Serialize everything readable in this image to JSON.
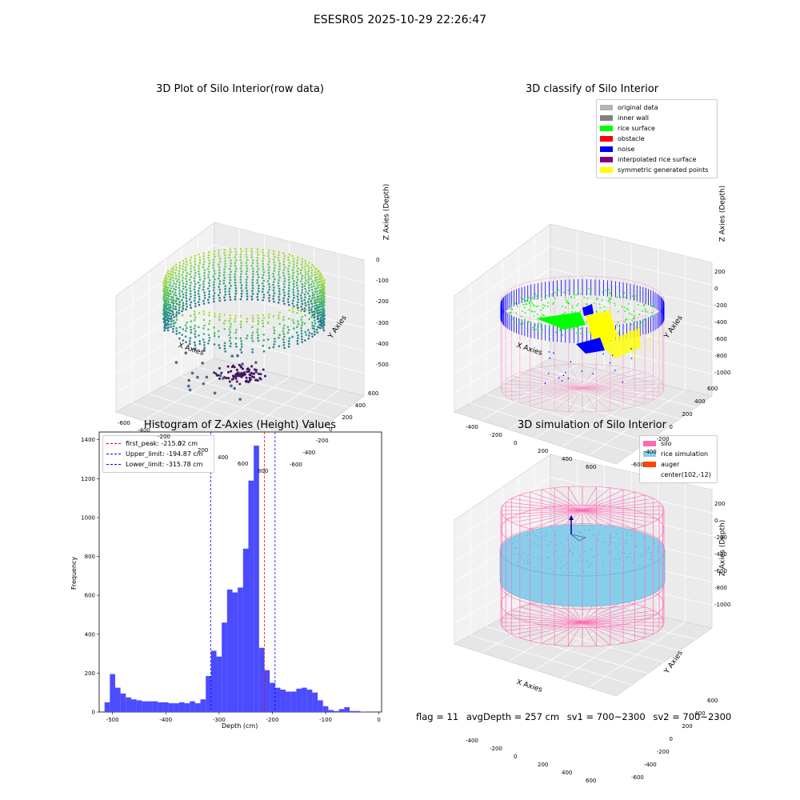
{
  "suptitle": "ESESR05 2025-10-29 22:26:47",
  "panels": {
    "raw": {
      "title": "3D Plot of Silo Interior(row data)",
      "x_label": "X Axies",
      "y_label": "Y Axies",
      "z_label": "Z Axies (Depth)",
      "x_ticks": [
        "-600",
        "-400",
        "-200",
        "0",
        "200",
        "400",
        "600",
        "800"
      ],
      "y_ticks": [
        "-600",
        "-400",
        "-200",
        "0",
        "200",
        "400",
        "600"
      ],
      "z_ticks": [
        "0",
        "-100",
        "-200",
        "-300",
        "-400",
        "-500"
      ]
    },
    "classify": {
      "title": "3D classify of Silo Interior",
      "x_label": "X Axies",
      "y_label": "Y Axies",
      "z_label": "Z Axies (Depth)",
      "x_ticks": [
        "-400",
        "-200",
        "0",
        "200",
        "400",
        "600"
      ],
      "y_ticks": [
        "-600",
        "-400",
        "-200",
        "0",
        "200",
        "400",
        "600"
      ],
      "z_ticks": [
        "200",
        "0",
        "-200",
        "-400",
        "-600",
        "-800",
        "-1000"
      ],
      "legend": [
        {
          "label": "original data",
          "color": "#b3b3b3"
        },
        {
          "label": "inner wall",
          "color": "#808080"
        },
        {
          "label": "rice surface",
          "color": "#00ff00"
        },
        {
          "label": "obstacle",
          "color": "#ff0000"
        },
        {
          "label": "noise",
          "color": "#0000ff"
        },
        {
          "label": "interpolated rice surface",
          "color": "#800080"
        },
        {
          "label": "symmetric generated points",
          "color": "#ffff00"
        }
      ]
    },
    "histogram": {
      "title": "Histogram of Z-Axies (Height) Values",
      "legend": [
        {
          "label": "first_peak: -215.02 cm",
          "color": "#ff0000"
        },
        {
          "label": "Upper_limit: -194.87 cm",
          "color": "#0000ff"
        },
        {
          "label": "Lower_limit: -315.78 cm",
          "color": "#0000ff"
        }
      ]
    },
    "simulation": {
      "title": "3D simulation of Silo Interior",
      "x_label": "X Axies",
      "y_label": "Y Axies",
      "z_label": "Z Axies (Depth)",
      "x_ticks": [
        "-400",
        "-200",
        "0",
        "200",
        "400",
        "600"
      ],
      "y_ticks": [
        "-600",
        "-400",
        "-200",
        "0",
        "200",
        "400",
        "600"
      ],
      "z_ticks": [
        "200",
        "0",
        "-200",
        "-400",
        "-600",
        "-800",
        "-1000"
      ],
      "legend": [
        {
          "label": "silo",
          "color": "#ff69b4"
        },
        {
          "label": "rice simulation",
          "color": "#87ceeb"
        },
        {
          "label": "auger",
          "color": "#ff4500"
        },
        {
          "label": "center(102,-12)",
          "color": ""
        }
      ]
    }
  },
  "status": {
    "flag": "flag = 11",
    "avg_depth": "avgDepth = 257 cm",
    "sv1": "sv1 = 700~2300",
    "sv2": "sv2 = 700~2300"
  },
  "colors": {
    "hist_bar": "#4b4bff",
    "silo": "#ff69b4",
    "rice": "#87ceeb"
  },
  "chart_data": {
    "type": "bar",
    "title": "Histogram of Z-Axies (Height) Values",
    "xlabel": "Depth (cm)",
    "ylabel": "Frequency",
    "xlim": [
      -525,
      5
    ],
    "ylim": [
      0,
      1440
    ],
    "x_ticks": [
      -500,
      -400,
      -300,
      -200,
      -100,
      0
    ],
    "y_ticks": [
      0,
      200,
      400,
      600,
      800,
      1000,
      1200,
      1400
    ],
    "bin_start": -515,
    "bin_width": 10,
    "values": [
      50,
      195,
      125,
      95,
      75,
      65,
      60,
      55,
      55,
      55,
      50,
      50,
      45,
      45,
      50,
      45,
      55,
      45,
      65,
      185,
      315,
      285,
      460,
      630,
      615,
      640,
      840,
      1190,
      1370,
      330,
      215,
      150,
      125,
      115,
      105,
      105,
      120,
      125,
      115,
      100,
      60,
      30,
      10,
      5,
      15,
      25,
      5,
      5,
      2
    ],
    "vlines": [
      {
        "x": -215.02,
        "color": "#ff0000",
        "label": "first_peak: -215.02 cm"
      },
      {
        "x": -194.87,
        "color": "#0000ff",
        "label": "Upper_limit: -194.87 cm"
      },
      {
        "x": -315.78,
        "color": "#0000ff",
        "label": "Lower_limit: -315.78 cm"
      }
    ]
  }
}
